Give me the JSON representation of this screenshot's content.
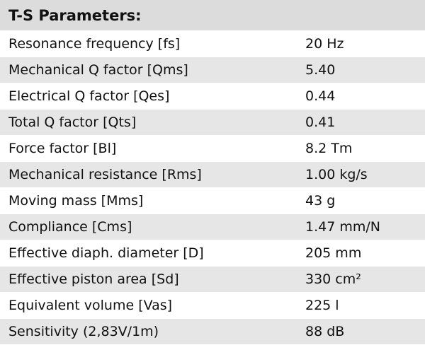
{
  "table": {
    "title": "T-S Parameters:",
    "rows": [
      [
        "Resonance frequency [fs]",
        "20 Hz"
      ],
      [
        "Mechanical Q factor [Qms]",
        "5.40"
      ],
      [
        "Electrical Q factor [Qes]",
        "0.44"
      ],
      [
        "Total Q factor [Qts]",
        "0.41"
      ],
      [
        "Force factor [Bl]",
        "8.2 Tm"
      ],
      [
        "Mechanical resistance [Rms]",
        "1.00 kg/s"
      ],
      [
        "Moving mass [Mms]",
        "43 g"
      ],
      [
        "Compliance [Cms]",
        "1.47 mm/N"
      ],
      [
        "Effective diaph. diameter [D]",
        "205 mm"
      ],
      [
        "Effective piston area [Sd]",
        "330 cm²"
      ],
      [
        "Equivalent volume [Vas]",
        "225 l"
      ],
      [
        "Sensitivity (2,83V/1m)",
        "88 dB"
      ]
    ]
  }
}
